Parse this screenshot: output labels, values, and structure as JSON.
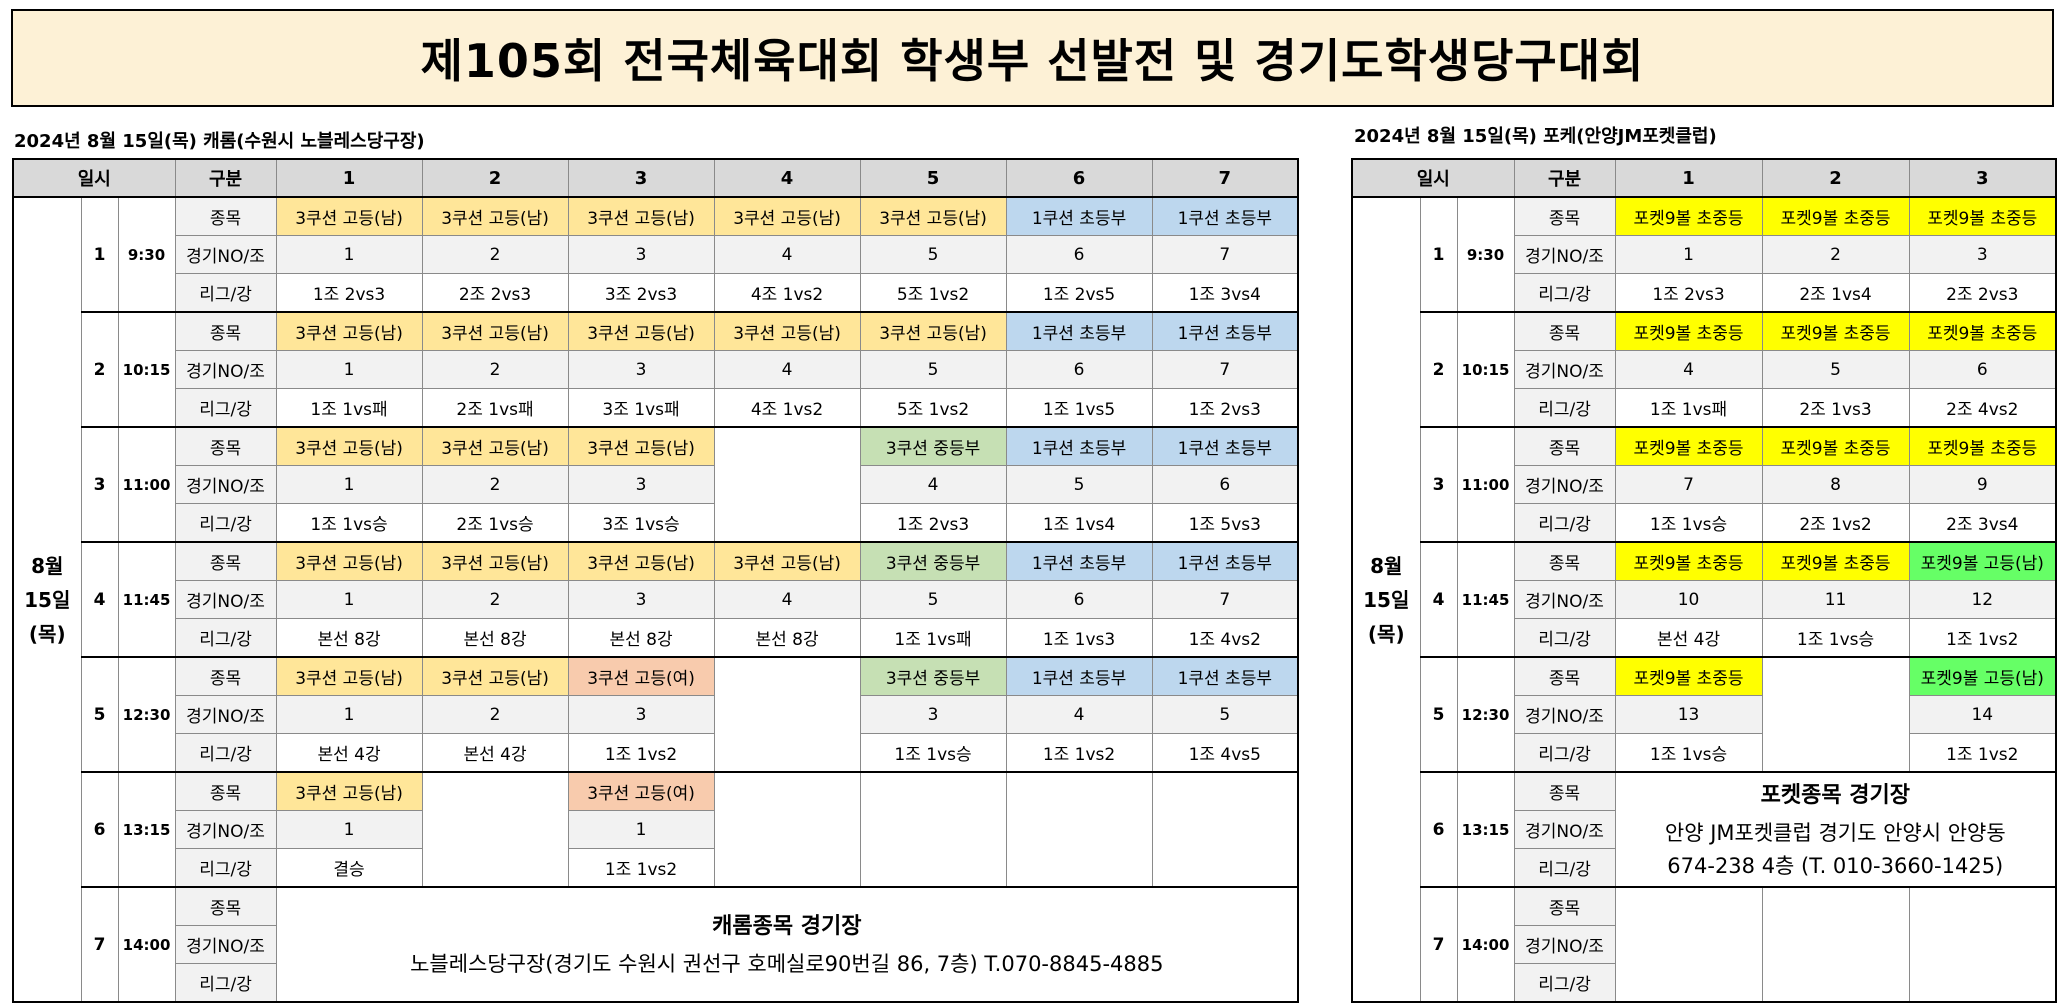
{
  "title": "제105회 전국체육대회 학생부 선발전 및 경기도학생당구대회",
  "carom": {
    "caption": "2024년 8월 15일(목) 캐롬(수원시 노블레스당구장)",
    "headers": [
      "일시",
      "구분",
      "1",
      "2",
      "3",
      "4",
      "5",
      "6",
      "7"
    ],
    "day": [
      "8월",
      "15일",
      "(목)"
    ],
    "row_labels": [
      "종목",
      "경기NO/조",
      "리그/강"
    ],
    "rounds": [
      {
        "no": "1",
        "time": "9:30",
        "cells": [
          {
            "event": "3쿠션 고등(남)",
            "game": "1",
            "league": "1조 2vs3"
          },
          {
            "event": "3쿠션 고등(남)",
            "game": "2",
            "league": "2조 2vs3"
          },
          {
            "event": "3쿠션 고등(남)",
            "game": "3",
            "league": "3조 2vs3"
          },
          {
            "event": "3쿠션 고등(남)",
            "game": "4",
            "league": "4조 1vs2"
          },
          {
            "event": "3쿠션 고등(남)",
            "game": "5",
            "league": "5조 1vs2"
          },
          {
            "event": "1쿠션 초등부",
            "game": "6",
            "league": "1조 2vs5"
          },
          {
            "event": "1쿠션 초등부",
            "game": "7",
            "league": "1조 3vs4"
          }
        ]
      },
      {
        "no": "2",
        "time": "10:15",
        "cells": [
          {
            "event": "3쿠션 고등(남)",
            "game": "1",
            "league": "1조 1vs패"
          },
          {
            "event": "3쿠션 고등(남)",
            "game": "2",
            "league": "2조 1vs패"
          },
          {
            "event": "3쿠션 고등(남)",
            "game": "3",
            "league": "3조 1vs패"
          },
          {
            "event": "3쿠션 고등(남)",
            "game": "4",
            "league": "4조 1vs2"
          },
          {
            "event": "3쿠션 고등(남)",
            "game": "5",
            "league": "5조 1vs2"
          },
          {
            "event": "1쿠션 초등부",
            "game": "6",
            "league": "1조 1vs5"
          },
          {
            "event": "1쿠션 초등부",
            "game": "7",
            "league": "1조 2vs3"
          }
        ]
      },
      {
        "no": "3",
        "time": "11:00",
        "cells": [
          {
            "event": "3쿠션 고등(남)",
            "game": "1",
            "league": "1조 1vs승"
          },
          {
            "event": "3쿠션 고등(남)",
            "game": "2",
            "league": "2조 1vs승"
          },
          {
            "event": "3쿠션 고등(남)",
            "game": "3",
            "league": "3조 1vs승"
          },
          {
            "event": "",
            "game": "",
            "league": ""
          },
          {
            "event": "3쿠션 중등부",
            "game": "4",
            "league": "1조 2vs3"
          },
          {
            "event": "1쿠션 초등부",
            "game": "5",
            "league": "1조 1vs4"
          },
          {
            "event": "1쿠션 초등부",
            "game": "6",
            "league": "1조 5vs3"
          }
        ]
      },
      {
        "no": "4",
        "time": "11:45",
        "cells": [
          {
            "event": "3쿠션 고등(남)",
            "game": "1",
            "league": "본선 8강"
          },
          {
            "event": "3쿠션 고등(남)",
            "game": "2",
            "league": "본선 8강"
          },
          {
            "event": "3쿠션 고등(남)",
            "game": "3",
            "league": "본선 8강"
          },
          {
            "event": "3쿠션 고등(남)",
            "game": "4",
            "league": "본선 8강"
          },
          {
            "event": "3쿠션 중등부",
            "game": "5",
            "league": "1조 1vs패"
          },
          {
            "event": "1쿠션 초등부",
            "game": "6",
            "league": "1조 1vs3"
          },
          {
            "event": "1쿠션 초등부",
            "game": "7",
            "league": "1조 4vs2"
          }
        ]
      },
      {
        "no": "5",
        "time": "12:30",
        "cells": [
          {
            "event": "3쿠션 고등(남)",
            "game": "1",
            "league": "본선 4강"
          },
          {
            "event": "3쿠션 고등(남)",
            "game": "2",
            "league": "본선 4강"
          },
          {
            "event": "3쿠션 고등(여)",
            "game": "3",
            "league": "1조 1vs2"
          },
          {
            "event": "",
            "game": "",
            "league": ""
          },
          {
            "event": "3쿠션 중등부",
            "game": "3",
            "league": "1조 1vs승"
          },
          {
            "event": "1쿠션 초등부",
            "game": "4",
            "league": "1조 1vs2"
          },
          {
            "event": "1쿠션 초등부",
            "game": "5",
            "league": "1조 4vs5"
          }
        ]
      },
      {
        "no": "6",
        "time": "13:15",
        "cells": [
          {
            "event": "3쿠션 고등(남)",
            "game": "1",
            "league": "결승"
          },
          {
            "event": "",
            "game": "",
            "league": ""
          },
          {
            "event": "3쿠션 고등(여)",
            "game": "1",
            "league": "1조 1vs2"
          },
          {
            "event": "",
            "game": "",
            "league": ""
          },
          {
            "event": "",
            "game": "",
            "league": ""
          },
          {
            "event": "",
            "game": "",
            "league": ""
          },
          {
            "event": "",
            "game": "",
            "league": ""
          }
        ]
      },
      {
        "no": "7",
        "time": "14:00",
        "cells": []
      }
    ],
    "venue": {
      "title": "캐롬종목 경기장",
      "line": "노블레스당구장(경기도 수원시 권선구 호메실로90번길 86, 7층) T.070-8845-4885"
    },
    "colors": {
      "3쿠션 고등(남)": "#ffe699",
      "1쿠션 초등부": "#bdd7ee",
      "3쿠션 중등부": "#c6e0b4",
      "3쿠션 고등(여)": "#f8cbad"
    }
  },
  "pocket": {
    "caption": "2024년 8월 15일(목) 포케(안양JM포켓클럽)",
    "headers": [
      "일시",
      "구분",
      "1",
      "2",
      "3"
    ],
    "day": [
      "8월",
      "15일",
      "(목)"
    ],
    "row_labels": [
      "종목",
      "경기NO/조",
      "리그/강"
    ],
    "rounds": [
      {
        "no": "1",
        "time": "9:30",
        "cells": [
          {
            "event": "포켓9볼 초중등",
            "game": "1",
            "league": "1조 2vs3"
          },
          {
            "event": "포켓9볼 초중등",
            "game": "2",
            "league": "2조 1vs4"
          },
          {
            "event": "포켓9볼 초중등",
            "game": "3",
            "league": "2조 2vs3"
          }
        ]
      },
      {
        "no": "2",
        "time": "10:15",
        "cells": [
          {
            "event": "포켓9볼 초중등",
            "game": "4",
            "league": "1조 1vs패"
          },
          {
            "event": "포켓9볼 초중등",
            "game": "5",
            "league": "2조 1vs3"
          },
          {
            "event": "포켓9볼 초중등",
            "game": "6",
            "league": "2조 4vs2"
          }
        ]
      },
      {
        "no": "3",
        "time": "11:00",
        "cells": [
          {
            "event": "포켓9볼 초중등",
            "game": "7",
            "league": "1조 1vs승"
          },
          {
            "event": "포켓9볼 초중등",
            "game": "8",
            "league": "2조 1vs2"
          },
          {
            "event": "포켓9볼 초중등",
            "game": "9",
            "league": "2조 3vs4"
          }
        ]
      },
      {
        "no": "4",
        "time": "11:45",
        "cells": [
          {
            "event": "포켓9볼 초중등",
            "game": "10",
            "league": "본선 4강"
          },
          {
            "event": "포켓9볼 초중등",
            "game": "11",
            "league": "1조 1vs승"
          },
          {
            "event": "포켓9볼 고등(남)",
            "game": "12",
            "league": "1조 1vs2"
          }
        ]
      },
      {
        "no": "5",
        "time": "12:30",
        "cells": [
          {
            "event": "포켓9볼 초중등",
            "game": "13",
            "league": "1조 1vs승"
          },
          {
            "event": "",
            "game": "",
            "league": ""
          },
          {
            "event": "포켓9볼 고등(남)",
            "game": "14",
            "league": "1조 1vs2"
          }
        ]
      },
      {
        "no": "6",
        "time": "13:15",
        "cells": []
      },
      {
        "no": "7",
        "time": "14:00",
        "cells": [
          {
            "event": "",
            "game": "",
            "league": ""
          },
          {
            "event": "",
            "game": "",
            "league": ""
          },
          {
            "event": "",
            "game": "",
            "league": ""
          }
        ]
      }
    ],
    "venue": {
      "title": "포켓종목 경기장",
      "line1": "안양 JM포켓클럽 경기도 안양시 안양동",
      "line2": "674-238 4층 (T. 010-3660-1425)"
    },
    "colors": {
      "포켓9볼 초중등": "#ffff00",
      "포켓9볼 고등(남)": "#66ff66"
    }
  }
}
